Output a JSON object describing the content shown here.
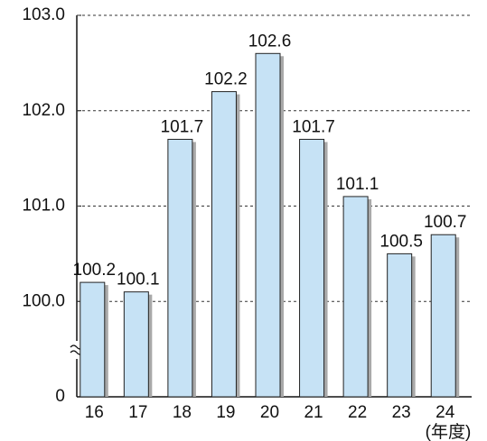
{
  "chart_data": {
    "type": "bar",
    "categories": [
      "16",
      "17",
      "18",
      "19",
      "20",
      "21",
      "22",
      "23",
      "24"
    ],
    "values": [
      100.2,
      100.1,
      101.7,
      102.2,
      102.6,
      101.7,
      101.1,
      100.5,
      100.7
    ],
    "x_unit": "(年度)",
    "color": "#c6e2f5",
    "shadow_color": "#a9a9a9",
    "ylim": [
      0,
      103
    ],
    "yticks": [
      0,
      {
        "value": 100,
        "label": "100.0"
      },
      {
        "value": 101,
        "label": "101.0"
      },
      {
        "value": 102,
        "label": "102.0"
      },
      {
        "value": 103,
        "label": "103.0"
      }
    ],
    "axis_break": true,
    "grid": true
  }
}
